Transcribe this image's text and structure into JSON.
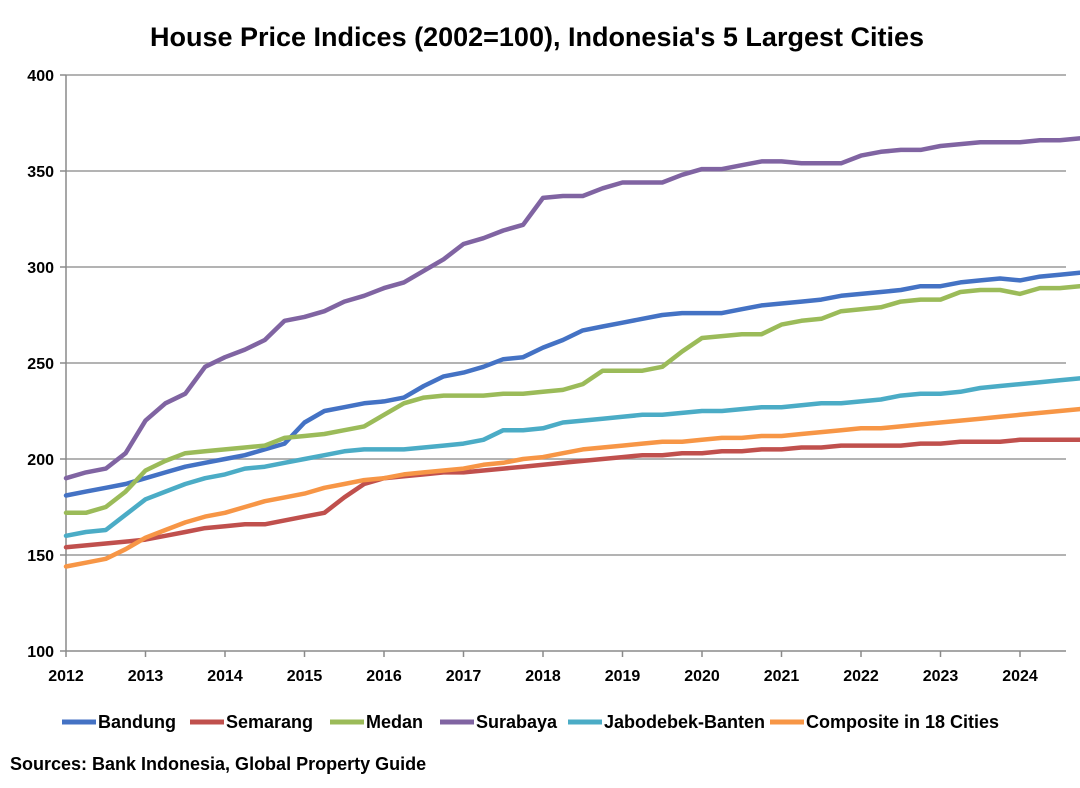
{
  "chart_data": {
    "type": "line",
    "title": "House Price Indices (2002=100), Indonesia's 5 Largest Cities",
    "xlabel": "",
    "ylabel": "",
    "ylim": [
      100,
      400
    ],
    "yticks": [
      100,
      150,
      200,
      250,
      300,
      350,
      400
    ],
    "year_labels": [
      "2012",
      "2013",
      "2014",
      "2015",
      "2016",
      "2017",
      "2018",
      "2019",
      "2020",
      "2021",
      "2022",
      "2023",
      "2024"
    ],
    "x_start": 2012.0,
    "x_step": 0.25,
    "grid": true,
    "legend_position": "bottom",
    "series": [
      {
        "name": "Bandung",
        "color": "#4472C4",
        "values": [
          181,
          183,
          185,
          187,
          190,
          193,
          196,
          198,
          200,
          202,
          205,
          208,
          219,
          225,
          227,
          229,
          230,
          232,
          238,
          243,
          245,
          248,
          252,
          253,
          258,
          262,
          267,
          269,
          271,
          273,
          275,
          276,
          276,
          276,
          278,
          280,
          281,
          282,
          283,
          285,
          286,
          287,
          288,
          290,
          290,
          292,
          293,
          294,
          293,
          295,
          296,
          297,
          297
        ]
      },
      {
        "name": "Semarang",
        "color": "#C0504D",
        "values": [
          154,
          155,
          156,
          157,
          158,
          160,
          162,
          164,
          165,
          166,
          166,
          168,
          170,
          172,
          180,
          187,
          190,
          191,
          192,
          193,
          193,
          194,
          195,
          196,
          197,
          198,
          199,
          200,
          201,
          202,
          202,
          203,
          203,
          204,
          204,
          205,
          205,
          206,
          206,
          207,
          207,
          207,
          207,
          208,
          208,
          209,
          209,
          209,
          210,
          210,
          210,
          210,
          210
        ]
      },
      {
        "name": "Medan",
        "color": "#9BBB59",
        "values": [
          172,
          172,
          175,
          183,
          194,
          199,
          203,
          204,
          205,
          206,
          207,
          211,
          212,
          213,
          215,
          217,
          223,
          229,
          232,
          233,
          233,
          233,
          234,
          234,
          235,
          236,
          239,
          246,
          246,
          246,
          248,
          256,
          263,
          264,
          265,
          265,
          270,
          272,
          273,
          277,
          278,
          279,
          282,
          283,
          283,
          287,
          288,
          288,
          286,
          289,
          289,
          290,
          289
        ]
      },
      {
        "name": "Surabaya",
        "color": "#8064A2",
        "values": [
          190,
          193,
          195,
          203,
          220,
          229,
          234,
          248,
          253,
          257,
          262,
          272,
          274,
          277,
          282,
          285,
          289,
          292,
          298,
          304,
          312,
          315,
          319,
          322,
          336,
          337,
          337,
          341,
          344,
          344,
          344,
          348,
          351,
          351,
          353,
          355,
          355,
          354,
          354,
          354,
          358,
          360,
          361,
          361,
          363,
          364,
          365,
          365,
          365,
          366,
          366,
          367,
          368
        ]
      },
      {
        "name": "Jabodebek-Banten",
        "color": "#4BACC6",
        "values": [
          160,
          162,
          163,
          171,
          179,
          183,
          187,
          190,
          192,
          195,
          196,
          198,
          200,
          202,
          204,
          205,
          205,
          205,
          206,
          207,
          208,
          210,
          215,
          215,
          216,
          219,
          220,
          221,
          222,
          223,
          223,
          224,
          225,
          225,
          226,
          227,
          227,
          228,
          229,
          229,
          230,
          231,
          233,
          234,
          234,
          235,
          237,
          238,
          239,
          240,
          241,
          242,
          242
        ]
      },
      {
        "name": "Composite in 18 Cities",
        "color": "#F79646",
        "values": [
          144,
          146,
          148,
          153,
          159,
          163,
          167,
          170,
          172,
          175,
          178,
          180,
          182,
          185,
          187,
          189,
          190,
          192,
          193,
          194,
          195,
          197,
          198,
          200,
          201,
          203,
          205,
          206,
          207,
          208,
          209,
          209,
          210,
          211,
          211,
          212,
          212,
          213,
          214,
          215,
          216,
          216,
          217,
          218,
          219,
          220,
          221,
          222,
          223,
          224,
          225,
          226,
          227
        ]
      }
    ]
  },
  "source": "Sources: Bank Indonesia, Global Property Guide"
}
